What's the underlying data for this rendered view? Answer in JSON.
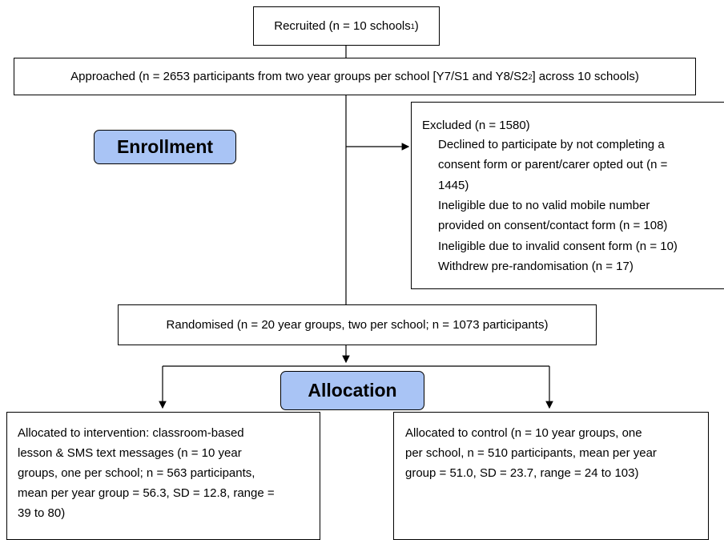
{
  "recruited": {
    "text": "Recruited (n = 10 schools",
    "sup": "1",
    "tail": ")"
  },
  "approached": {
    "text": "Approached (n = 2653 participants from two year groups per school [Y7/S1 and Y8/S2",
    "sup": "2",
    "tail": "] across 10 schools)"
  },
  "enrollment": "Enrollment",
  "excluded": {
    "title": "Excluded (n = 1580)",
    "lines": [
      "Declined to participate by not completing a",
      "consent form or parent/carer opted out (n =",
      "1445)",
      "Ineligible due to no valid mobile number",
      "provided on consent/contact form (n = 108)",
      "Ineligible due to invalid consent form (n = 10)",
      "Withdrew pre-randomisation (n = 17)"
    ]
  },
  "randomised": "Randomised (n = 20 year groups, two per school; n = 1073 participants)",
  "allocation": "Allocation",
  "intervention": {
    "lines": [
      "Allocated to intervention: classroom-based",
      "lesson & SMS text messages (n = 10 year",
      "groups, one per school; n = 563 participants,",
      "mean per year group = 56.3, SD = 12.8, range =",
      "39 to 80)"
    ]
  },
  "control": {
    "lines": [
      "Allocated to control (n = 10 year groups, one",
      "per school, n = 510 participants, mean per year",
      "group = 51.0, SD = 23.7, range = 24 to 103)"
    ]
  }
}
